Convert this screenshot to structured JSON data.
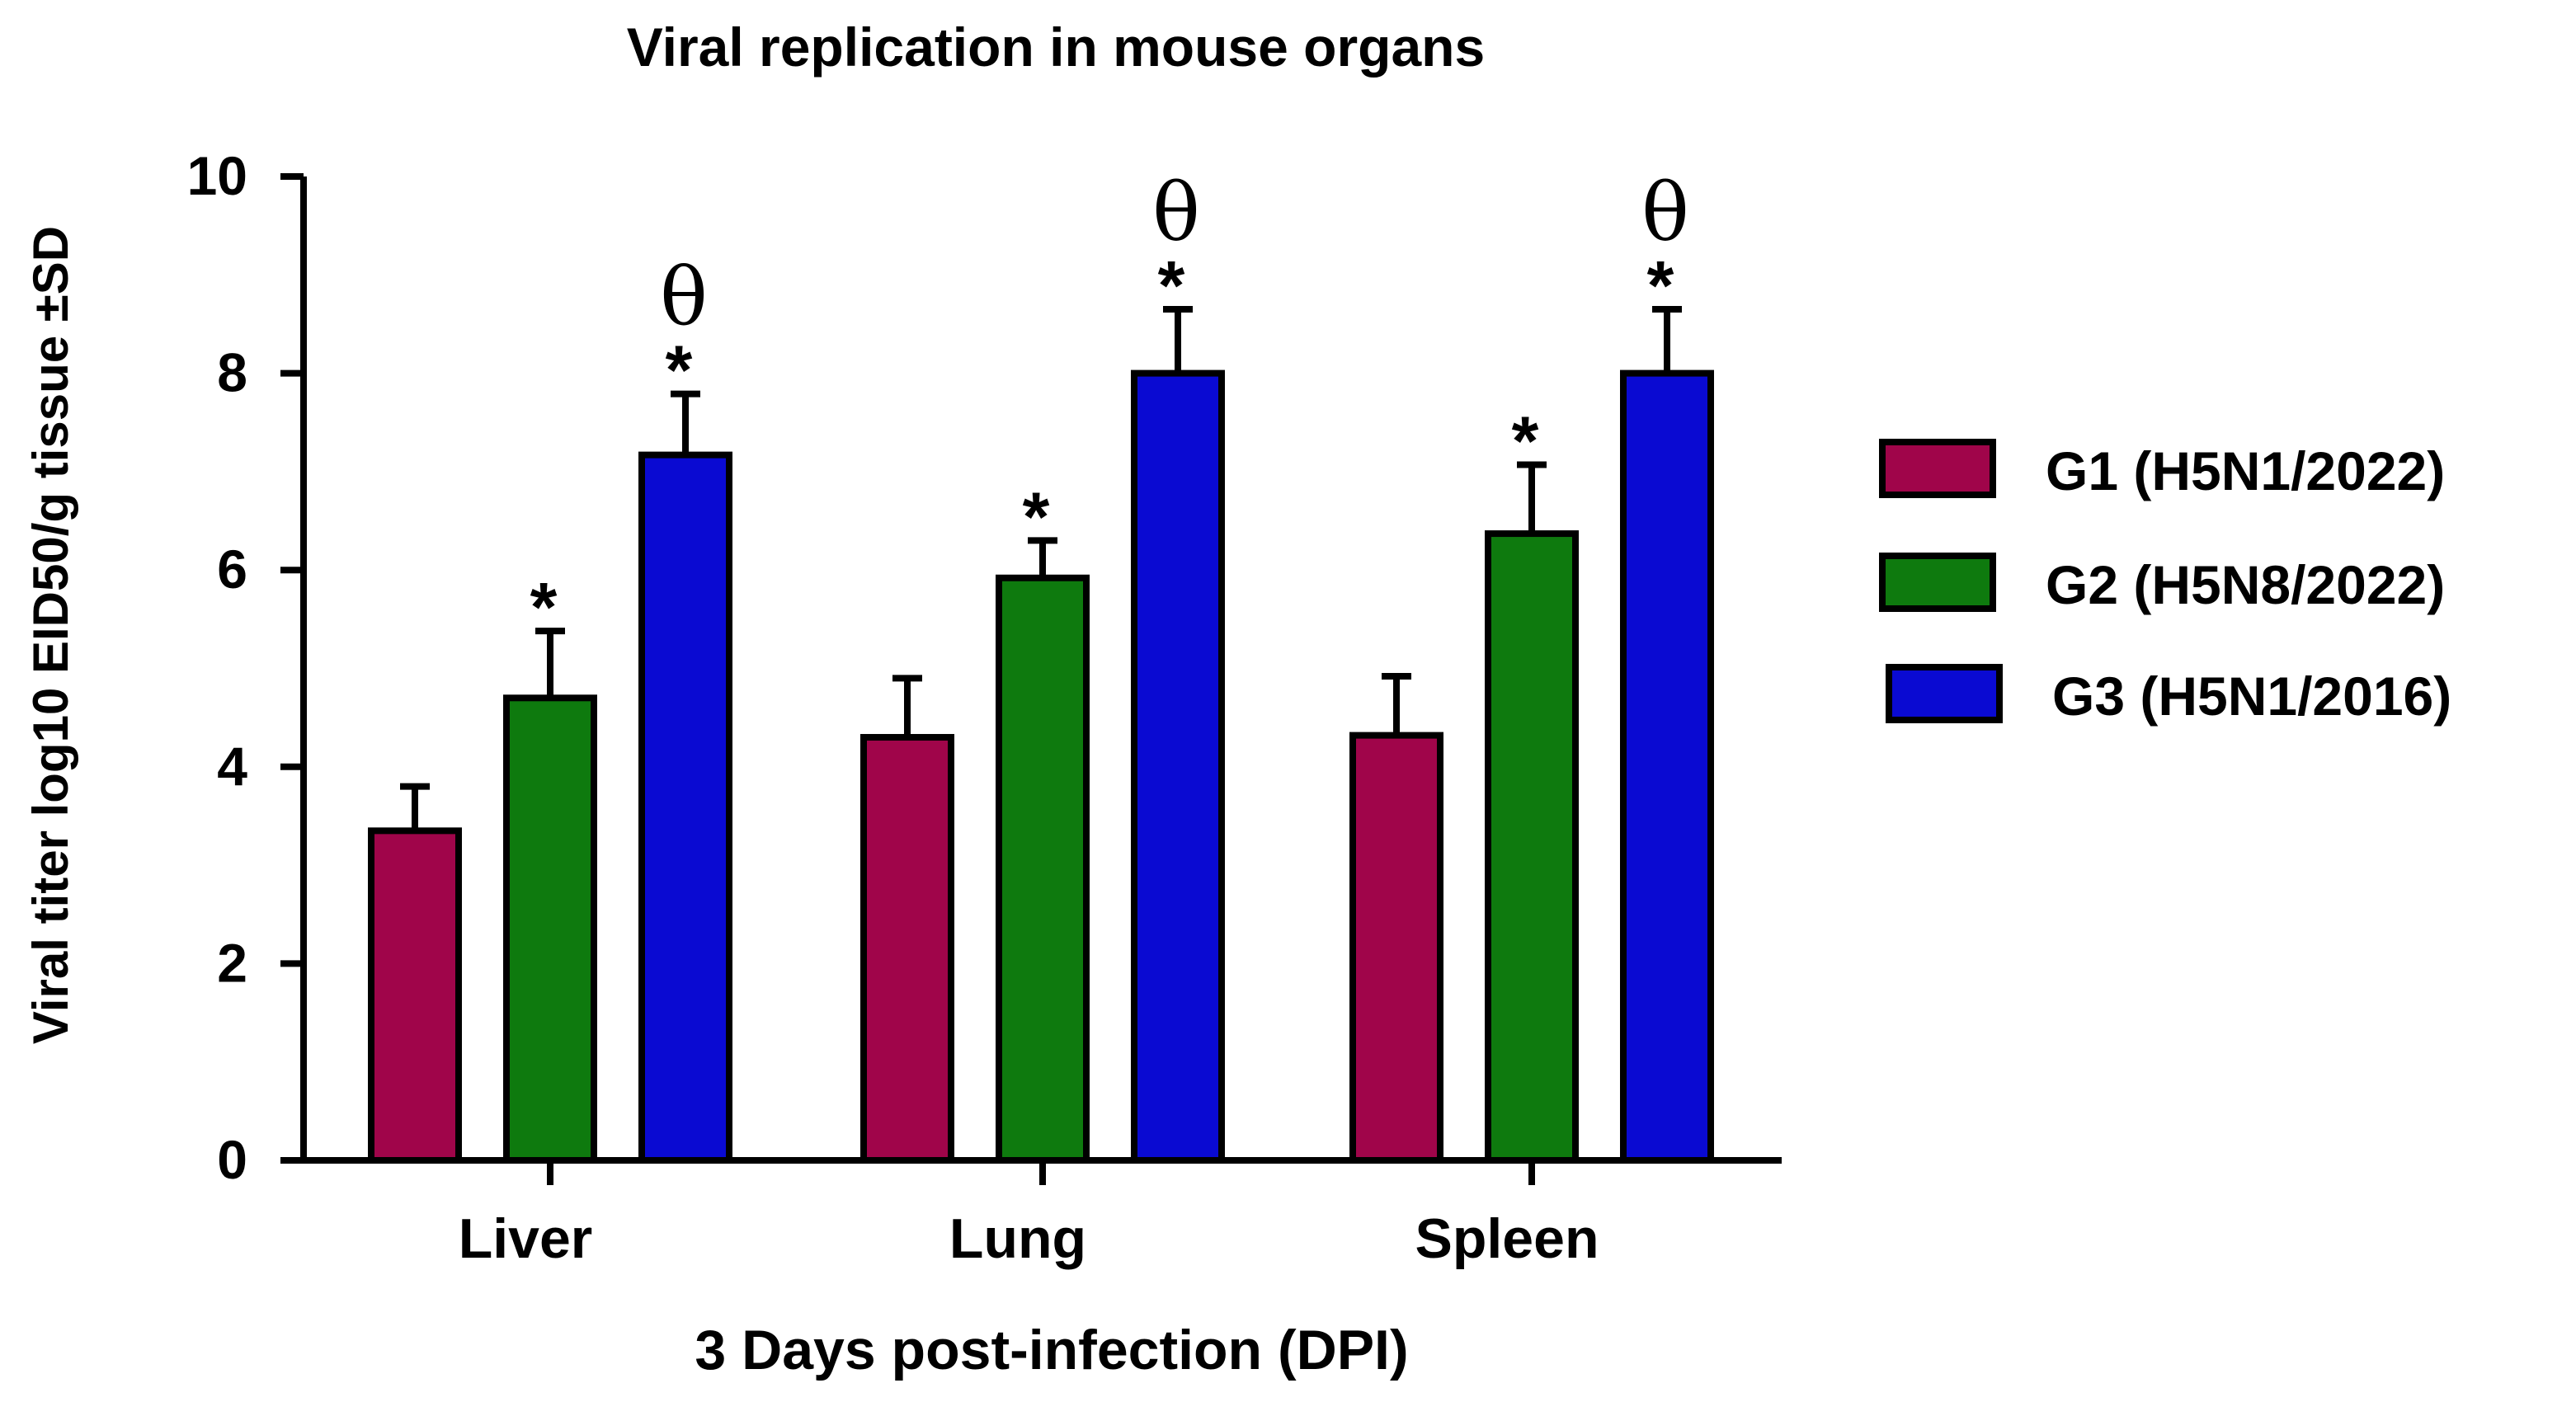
{
  "chart_data": {
    "type": "bar",
    "title": "Viral replication in mouse organs",
    "xlabel": "3 Days post-infection (DPI)",
    "ylabel": "Viral titer log10 EID50/g tissue ±SD",
    "ylim": [
      0,
      10
    ],
    "yticks": [
      "0",
      "2",
      "4",
      "6",
      "8",
      "10"
    ],
    "categories": [
      "Liver",
      "Lung",
      "Spleen"
    ],
    "grid": false,
    "legend_position": "right",
    "series": [
      {
        "name": "G1 (H5N1/2022)",
        "color": "#a0054a",
        "values": [
          3.35,
          4.3,
          4.32
        ],
        "errors": [
          0.45,
          0.6,
          0.6
        ],
        "marks": [
          "",
          "",
          ""
        ]
      },
      {
        "name": "G2 (H5N8/2022)",
        "color": "#0e7a0e",
        "values": [
          4.7,
          5.92,
          6.37
        ],
        "errors": [
          0.68,
          0.38,
          0.7
        ],
        "marks": [
          "*",
          "*",
          "*"
        ]
      },
      {
        "name": "G3 (H5N1/2016)",
        "color": "#0a0ad2",
        "values": [
          7.17,
          8.0,
          8.0
        ],
        "errors": [
          0.62,
          0.65,
          0.65
        ],
        "marks": [
          "*",
          "*",
          "*"
        ],
        "theta": [
          "θ",
          "θ",
          "θ"
        ]
      }
    ]
  }
}
